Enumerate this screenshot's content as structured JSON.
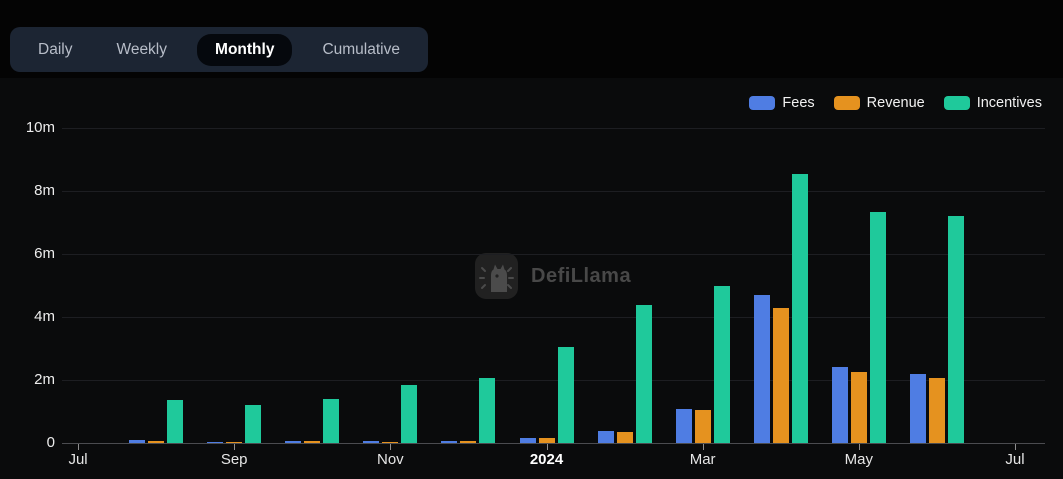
{
  "tabs": {
    "items": [
      {
        "label": "Daily",
        "active": false
      },
      {
        "label": "Weekly",
        "active": false
      },
      {
        "label": "Monthly",
        "active": true
      },
      {
        "label": "Cumulative",
        "active": false
      }
    ]
  },
  "legend": [
    {
      "label": "Fees",
      "color": "#4f7de3"
    },
    {
      "label": "Revenue",
      "color": "#e5921f"
    },
    {
      "label": "Incentives",
      "color": "#1fc99b"
    }
  ],
  "watermark": {
    "label": "DefiLlama"
  },
  "chart_data": {
    "type": "bar",
    "title": "",
    "xlabel": "",
    "ylabel": "",
    "units": "millions (m)",
    "ylim": [
      0,
      10
    ],
    "grid": true,
    "legend_position": "top-right",
    "categories": [
      "Jul 2023",
      "Aug 2023",
      "Sep 2023",
      "Oct 2023",
      "Nov 2023",
      "Dec 2023",
      "Jan 2024",
      "Feb 2024",
      "Mar 2024",
      "Apr 2024",
      "May 2024",
      "Jun 2024",
      "Jul 2024"
    ],
    "series": [
      {
        "name": "Fees",
        "color": "#4f7de3",
        "values": [
          0,
          0.08,
          0.04,
          0.06,
          0.05,
          0.07,
          0.15,
          0.38,
          1.08,
          4.7,
          2.4,
          2.2,
          0
        ]
      },
      {
        "name": "Revenue",
        "color": "#e5921f",
        "values": [
          0,
          0.06,
          0.04,
          0.05,
          0.04,
          0.05,
          0.17,
          0.36,
          1.05,
          4.27,
          2.25,
          2.05,
          0
        ]
      },
      {
        "name": "Incentives",
        "color": "#1fc99b",
        "values": [
          0,
          1.38,
          1.22,
          1.4,
          1.85,
          2.05,
          3.05,
          4.38,
          5.0,
          8.55,
          7.33,
          7.2,
          0
        ]
      }
    ],
    "y_ticks": [
      {
        "value": 0,
        "label": "0"
      },
      {
        "value": 2,
        "label": "2m"
      },
      {
        "value": 4,
        "label": "4m"
      },
      {
        "value": 6,
        "label": "6m"
      },
      {
        "value": 8,
        "label": "8m"
      },
      {
        "value": 10,
        "label": "10m"
      }
    ],
    "x_ticks": [
      {
        "index": 0,
        "label": "Jul",
        "bold": false
      },
      {
        "index": 2,
        "label": "Sep",
        "bold": false
      },
      {
        "index": 4,
        "label": "Nov",
        "bold": false
      },
      {
        "index": 6,
        "label": "2024",
        "bold": true
      },
      {
        "index": 8,
        "label": "Mar",
        "bold": false
      },
      {
        "index": 10,
        "label": "May",
        "bold": false
      },
      {
        "index": 12,
        "label": "Jul",
        "bold": false
      }
    ]
  }
}
